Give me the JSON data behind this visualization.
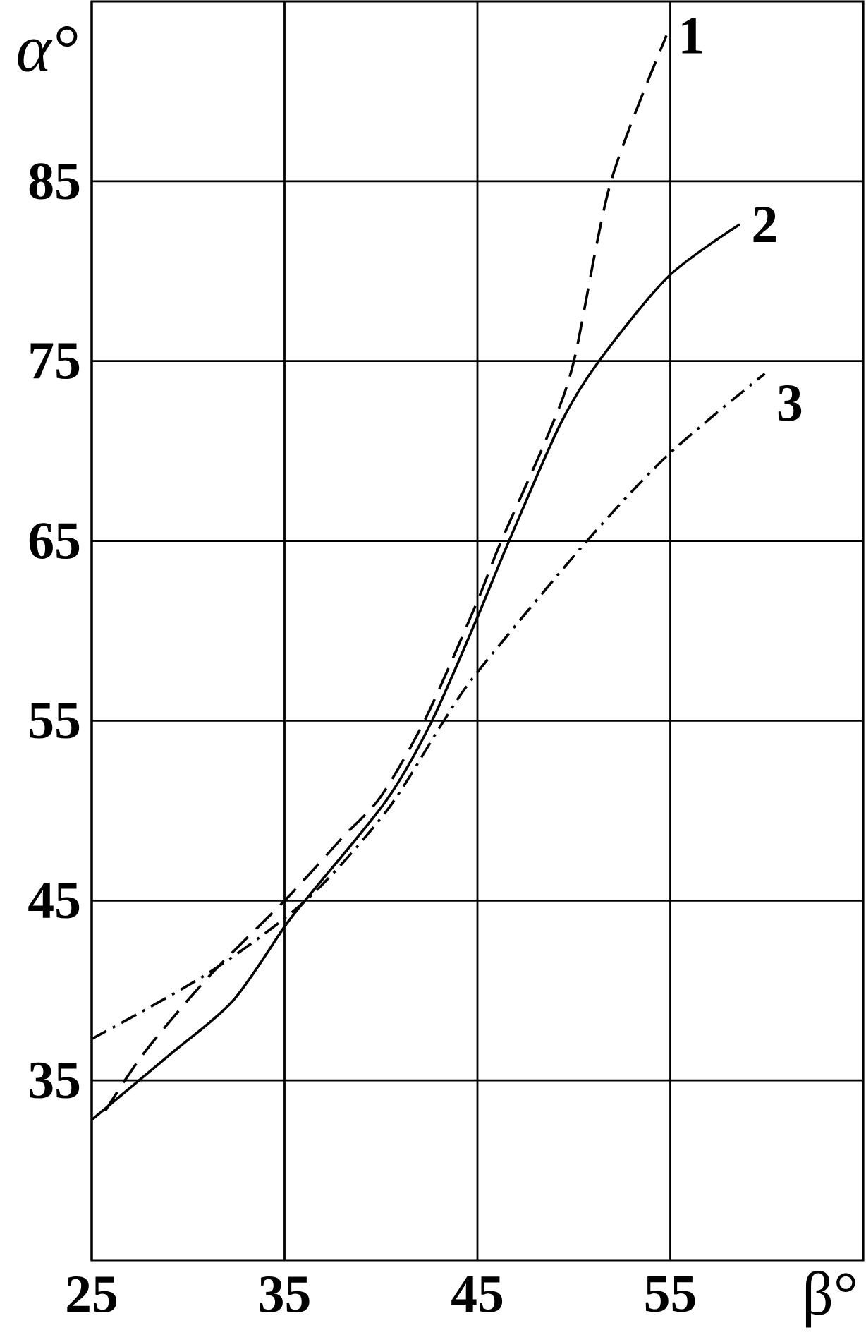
{
  "chart_data": {
    "type": "line",
    "xlabel": "β°",
    "ylabel": "α°",
    "xlim": [
      25,
      65
    ],
    "ylim": [
      25,
      95
    ],
    "xticks": [
      25,
      35,
      45,
      55
    ],
    "yticks": [
      35,
      45,
      55,
      65,
      75,
      85
    ],
    "grid": true,
    "legend": false,
    "series": [
      {
        "name": "1",
        "color": "#000000",
        "line_style": "dashed",
        "x": [
          25.7,
          27.7,
          31.1,
          35.1,
          38,
          40,
          42.3,
          44.9,
          46.2,
          48.7,
          50.0,
          51.9,
          54.8
        ],
        "values": [
          33.3,
          36.5,
          40.8,
          45.1,
          48.5,
          50.8,
          55.1,
          61.4,
          64.9,
          71.0,
          75.0,
          84.9,
          93.1
        ]
      },
      {
        "name": "2",
        "color": "#000000",
        "line_style": "solid",
        "x": [
          25,
          28.9,
          32.3,
          35.1,
          36.6,
          40.3,
          42.6,
          44.9,
          46.6,
          49.3,
          51.3,
          54.9,
          58.6
        ],
        "values": [
          32.8,
          36.3,
          39.4,
          43.7,
          45.7,
          50.6,
          54.9,
          60.5,
          64.9,
          71.5,
          75.0,
          79.7,
          82.6
        ]
      },
      {
        "name": "3",
        "color": "#000000",
        "line_style": "dashdot",
        "x": [
          25,
          31.1,
          36.2,
          40.3,
          43.2,
          45.0,
          50.6,
          54.9,
          59.9
        ],
        "values": [
          37.3,
          41.0,
          45.1,
          50.0,
          54.9,
          57.7,
          64.9,
          69.8,
          74.3
        ]
      }
    ]
  }
}
